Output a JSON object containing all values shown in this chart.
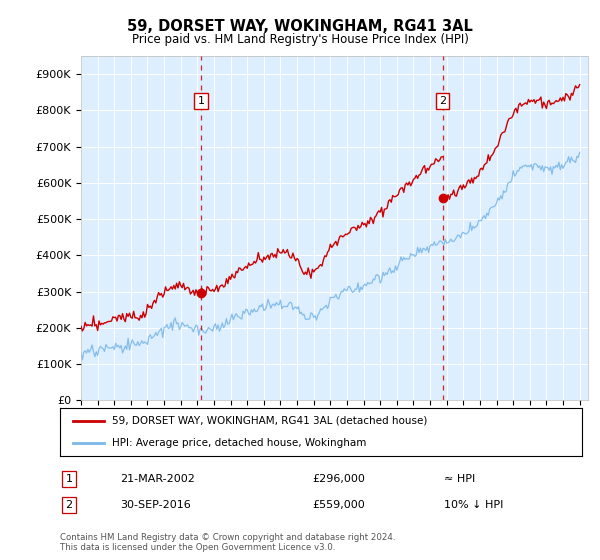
{
  "title": "59, DORSET WAY, WOKINGHAM, RG41 3AL",
  "subtitle": "Price paid vs. HM Land Registry's House Price Index (HPI)",
  "ylim": [
    0,
    950000
  ],
  "yticks": [
    0,
    100000,
    200000,
    300000,
    400000,
    500000,
    600000,
    700000,
    800000,
    900000
  ],
  "ytick_labels": [
    "£0",
    "£100K",
    "£200K",
    "£300K",
    "£400K",
    "£500K",
    "£600K",
    "£700K",
    "£800K",
    "£900K"
  ],
  "plot_bg_color": "#ddeeff",
  "hpi_line_color": "#7ab8e8",
  "price_line_color": "#cc0000",
  "vline_color": "#cc0000",
  "t1": 2002.22,
  "p1": 296000,
  "t2": 2016.75,
  "p2": 559000,
  "legend_entries": [
    "59, DORSET WAY, WOKINGHAM, RG41 3AL (detached house)",
    "HPI: Average price, detached house, Wokingham"
  ],
  "footer_line1": "Contains HM Land Registry data © Crown copyright and database right 2024.",
  "footer_line2": "This data is licensed under the Open Government Licence v3.0.",
  "table_row1": [
    "1",
    "21-MAR-2002",
    "£296,000",
    "≈ HPI"
  ],
  "table_row2": [
    "2",
    "30-SEP-2016",
    "£559,000",
    "10% ↓ HPI"
  ]
}
